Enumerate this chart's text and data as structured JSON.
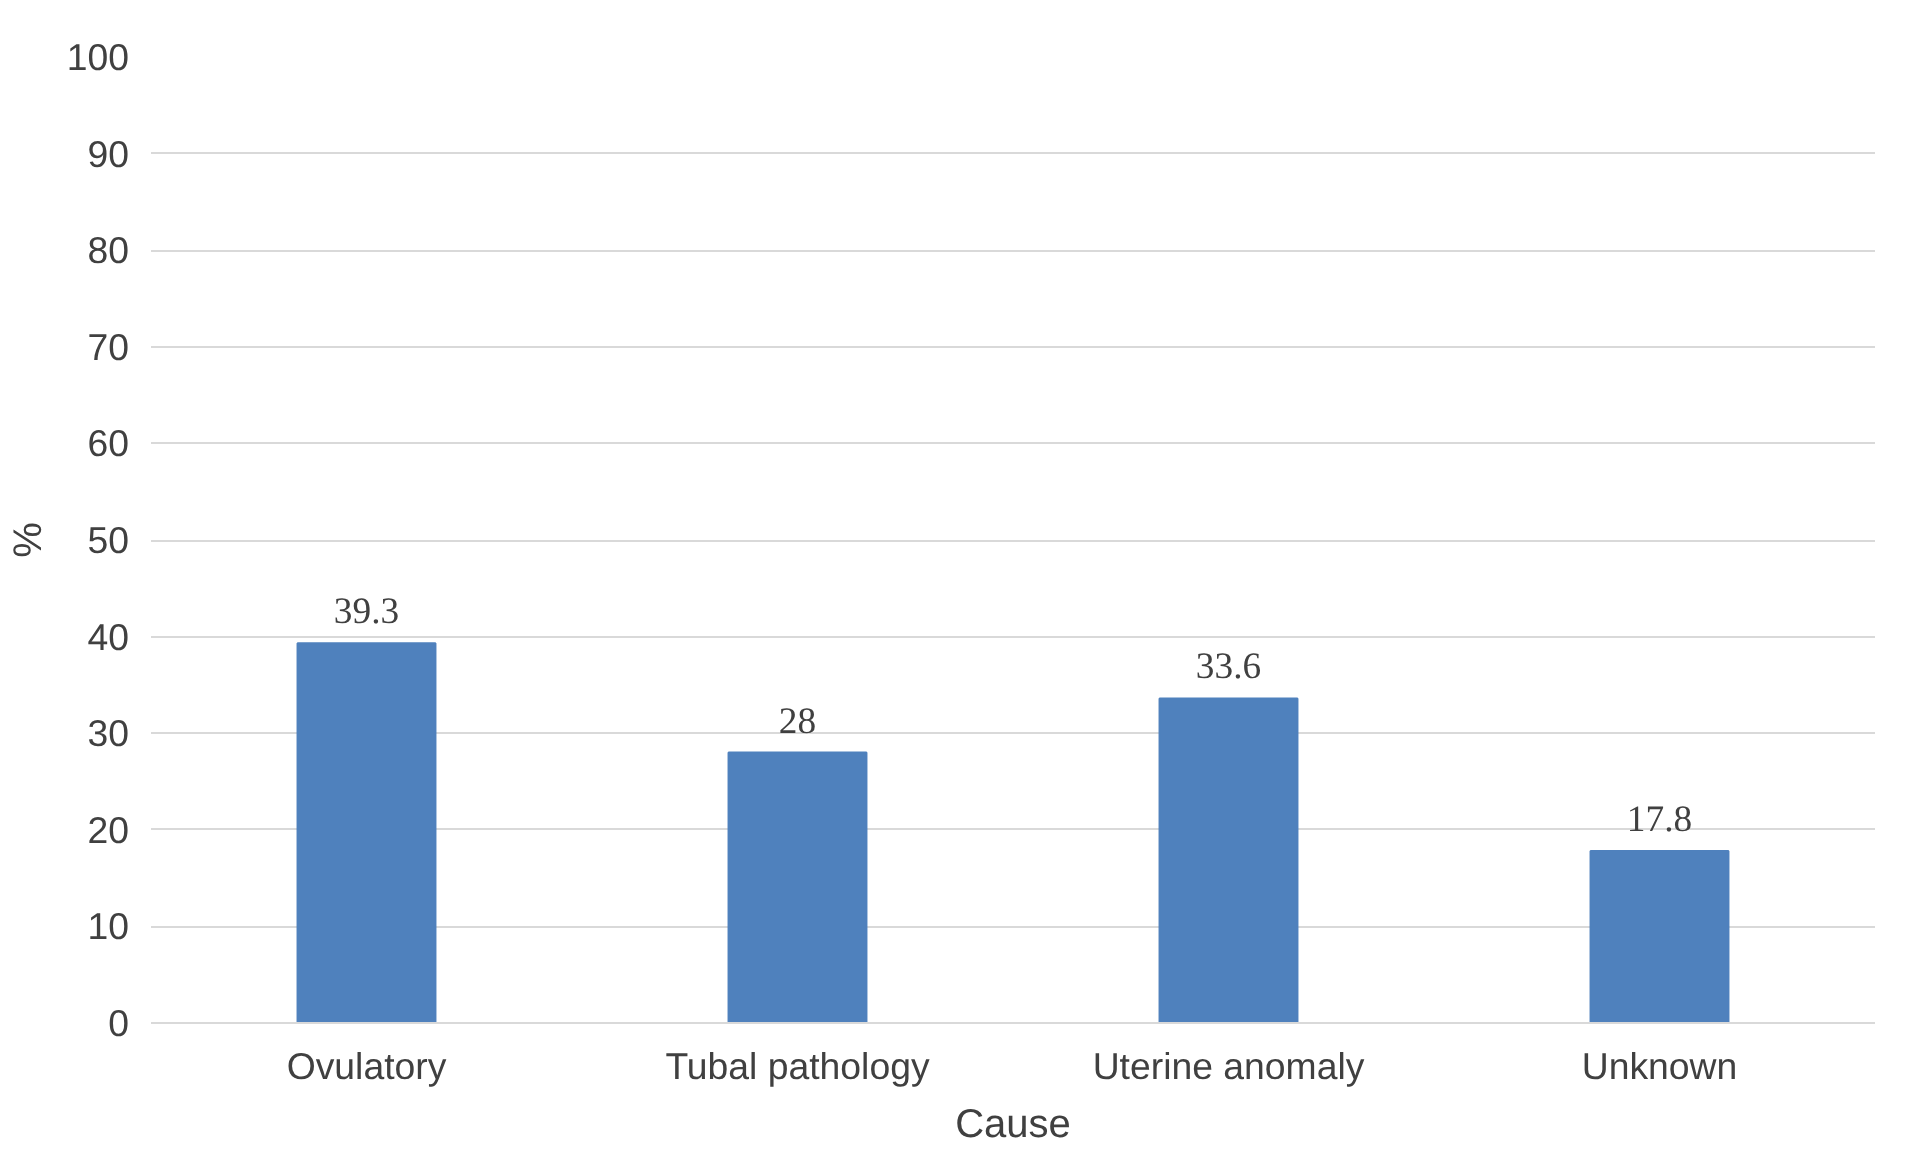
{
  "chart_data": {
    "type": "bar",
    "categories": [
      "Ovulatory",
      "Tubal pathology",
      "Uterine anomaly",
      "Unknown"
    ],
    "values": [
      39.3,
      28,
      33.6,
      17.8
    ],
    "color": "#4f81bd",
    "xlabel": "Cause",
    "ylabel": "%",
    "ylim": [
      0,
      100
    ],
    "yticks": [
      0,
      10,
      20,
      30,
      40,
      50,
      60,
      70,
      80,
      90,
      100
    ],
    "grid": "y",
    "data_labels": true
  }
}
